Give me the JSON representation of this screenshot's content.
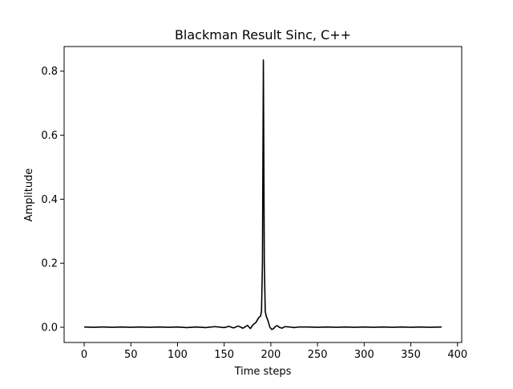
{
  "chart_data": {
    "type": "line",
    "title": "Blackman Result Sinc, C++",
    "xlabel": "Time steps",
    "ylabel": "Amplitude",
    "xlim": [
      -21.5,
      404.5
    ],
    "ylim": [
      -0.0475,
      0.877
    ],
    "xticks": [
      0,
      50,
      100,
      150,
      200,
      250,
      300,
      350,
      400
    ],
    "yticks": [
      0.0,
      0.2,
      0.4,
      0.6,
      0.8
    ],
    "xtick_labels": [
      "0",
      "50",
      "100",
      "150",
      "200",
      "250",
      "300",
      "350",
      "400"
    ],
    "ytick_labels": [
      "0.0",
      "0.2",
      "0.4",
      "0.6",
      "0.8"
    ],
    "grid": false,
    "legend": "none",
    "line_color": "#000000",
    "series": [
      {
        "x": [
          0,
          10,
          20,
          30,
          40,
          50,
          60,
          70,
          80,
          90,
          100,
          110,
          120,
          130,
          140,
          150,
          155,
          160,
          165,
          170,
          175,
          178,
          181,
          184,
          187,
          189,
          190,
          191,
          192,
          193,
          194,
          195,
          197,
          199,
          201,
          203,
          205,
          207,
          209,
          212,
          215,
          220,
          225,
          230,
          240,
          250,
          260,
          270,
          280,
          290,
          300,
          310,
          320,
          330,
          340,
          350,
          360,
          370,
          383
        ],
        "y": [
          0.001,
          0.0,
          0.001,
          0.0,
          0.001,
          0.0,
          0.001,
          0.0,
          0.001,
          0.0,
          0.001,
          -0.001,
          0.001,
          -0.001,
          0.002,
          -0.001,
          0.003,
          -0.002,
          0.004,
          -0.003,
          0.006,
          -0.004,
          0.008,
          0.015,
          0.03,
          0.035,
          0.05,
          0.2,
          0.835,
          0.2,
          0.05,
          0.035,
          0.02,
          0.0,
          -0.007,
          -0.004,
          0.003,
          0.005,
          0.0,
          -0.003,
          0.002,
          0.001,
          -0.001,
          0.001,
          0.001,
          0.0,
          0.001,
          0.0,
          0.001,
          0.0,
          0.001,
          0.0,
          0.001,
          0.0,
          0.001,
          0.0,
          0.001,
          0.0,
          0.001
        ]
      }
    ]
  }
}
